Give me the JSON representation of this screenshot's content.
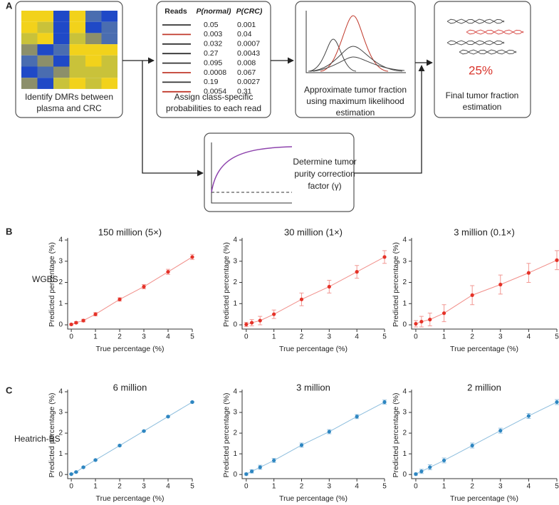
{
  "panel_labels": [
    "A",
    "B",
    "C"
  ],
  "row_labels": [
    "WGBS",
    "Heatrich-BS"
  ],
  "diagram": {
    "dmr": {
      "label": [
        "Identify DMRs between",
        "plasma and CRC"
      ]
    },
    "probabilities": {
      "header": [
        "Reads",
        "P(normal)",
        "P(CRC)"
      ],
      "rows": [
        {
          "color": "#333333",
          "p_normal": "0.05",
          "p_crc": "0.001"
        },
        {
          "color": "#c0392b",
          "p_normal": "0.003",
          "p_crc": "0.04"
        },
        {
          "color": "#333333",
          "p_normal": "0.032",
          "p_crc": "0.0007"
        },
        {
          "color": "#333333",
          "p_normal": "0.27",
          "p_crc": "0.0043"
        },
        {
          "color": "#333333",
          "p_normal": "0.095",
          "p_crc": "0.008"
        },
        {
          "color": "#c0392b",
          "p_normal": "0.0008",
          "p_crc": "0.067"
        },
        {
          "color": "#333333",
          "p_normal": "0.19",
          "p_crc": "0.0027"
        },
        {
          "color": "#c0392b",
          "p_normal": "0.0054",
          "p_crc": "0.31"
        }
      ],
      "label": [
        "Assign class-specific",
        "probabilities to each read"
      ]
    },
    "mle": {
      "label": [
        "Approximate tumor fraction",
        "using maximum likelihood",
        "estimation"
      ]
    },
    "final": {
      "value": "25%",
      "label": [
        "Final tumor fraction",
        "estimation"
      ]
    },
    "correction": {
      "label": [
        "Determine tumor",
        "purity correction",
        "factor (γ)"
      ]
    }
  },
  "chart_data": [
    {
      "type": "line",
      "title": "150 million (5×)",
      "x_label": "True percentage (%)",
      "y_label": "Predicted percentage (%)",
      "color": "#e53228",
      "x": [
        0,
        0.2,
        0.5,
        1,
        2,
        3,
        4,
        5
      ],
      "values": [
        0.02,
        0.1,
        0.2,
        0.5,
        1.2,
        1.8,
        2.5,
        3.2
      ],
      "errors": [
        0.03,
        0.05,
        0.06,
        0.08,
        0.08,
        0.1,
        0.12,
        0.12
      ],
      "xlim": [
        -0.15,
        5
      ],
      "ylim": [
        -0.2,
        4
      ],
      "xticks": [
        0,
        1,
        2,
        3,
        4,
        5
      ],
      "yticks": [
        0,
        1,
        2,
        3,
        4
      ]
    },
    {
      "type": "line",
      "title": "30 million (1×)",
      "x_label": "True percentage (%)",
      "y_label": "Predicted percentage (%)",
      "color": "#e53228",
      "x": [
        0,
        0.2,
        0.5,
        1,
        2,
        3,
        4,
        5
      ],
      "values": [
        0.02,
        0.1,
        0.2,
        0.5,
        1.2,
        1.8,
        2.5,
        3.2
      ],
      "errors": [
        0.1,
        0.15,
        0.2,
        0.2,
        0.3,
        0.3,
        0.3,
        0.3
      ],
      "xlim": [
        -0.15,
        5
      ],
      "ylim": [
        -0.2,
        4
      ],
      "xticks": [
        0,
        1,
        2,
        3,
        4,
        5
      ],
      "yticks": [
        0,
        1,
        2,
        3,
        4
      ]
    },
    {
      "type": "line",
      "title": "3 million (0.1×)",
      "x_label": "True percentage (%)",
      "y_label": "Predicted percentage (%)",
      "color": "#e53228",
      "x": [
        0,
        0.2,
        0.5,
        1,
        2,
        3,
        4,
        5
      ],
      "values": [
        0.05,
        0.15,
        0.25,
        0.55,
        1.4,
        1.9,
        2.45,
        3.05
      ],
      "errors": [
        0.15,
        0.25,
        0.3,
        0.4,
        0.45,
        0.45,
        0.45,
        0.45
      ],
      "xlim": [
        -0.15,
        5
      ],
      "ylim": [
        -0.2,
        4
      ],
      "xticks": [
        0,
        1,
        2,
        3,
        4,
        5
      ],
      "yticks": [
        0,
        1,
        2,
        3,
        4
      ]
    },
    {
      "type": "line",
      "title": "6 million",
      "x_label": "True percentage (%)",
      "y_label": "Predicted percentage (%)",
      "color": "#2e86c1",
      "x": [
        0,
        0.2,
        0.5,
        1,
        2,
        3,
        4,
        5
      ],
      "values": [
        0.02,
        0.12,
        0.35,
        0.7,
        1.4,
        2.1,
        2.8,
        3.5
      ],
      "errors": [
        0.03,
        0.03,
        0.03,
        0.03,
        0.03,
        0.03,
        0.03,
        0.03
      ],
      "xlim": [
        -0.15,
        5
      ],
      "ylim": [
        -0.2,
        4
      ],
      "xticks": [
        0,
        1,
        2,
        3,
        4,
        5
      ],
      "yticks": [
        0,
        1,
        2,
        3,
        4
      ]
    },
    {
      "type": "line",
      "title": "3 million",
      "x_label": "True percentage (%)",
      "y_label": "Predicted percentage (%)",
      "color": "#2e86c1",
      "x": [
        0,
        0.2,
        0.5,
        1,
        2,
        3,
        4,
        5
      ],
      "values": [
        0.02,
        0.15,
        0.35,
        0.68,
        1.42,
        2.07,
        2.8,
        3.5
      ],
      "errors": [
        0.05,
        0.08,
        0.1,
        0.1,
        0.1,
        0.1,
        0.1,
        0.1
      ],
      "xlim": [
        -0.15,
        5
      ],
      "ylim": [
        -0.2,
        4
      ],
      "xticks": [
        0,
        1,
        2,
        3,
        4,
        5
      ],
      "yticks": [
        0,
        1,
        2,
        3,
        4
      ]
    },
    {
      "type": "line",
      "title": "2 million",
      "x_label": "True percentage (%)",
      "y_label": "Predicted percentage (%)",
      "color": "#2e86c1",
      "x": [
        0,
        0.2,
        0.5,
        1,
        2,
        3,
        4,
        5
      ],
      "values": [
        0.02,
        0.15,
        0.35,
        0.68,
        1.4,
        2.12,
        2.83,
        3.5
      ],
      "errors": [
        0.05,
        0.1,
        0.12,
        0.12,
        0.12,
        0.12,
        0.12,
        0.12
      ],
      "xlim": [
        -0.15,
        5
      ],
      "ylim": [
        -0.2,
        4
      ],
      "xticks": [
        0,
        1,
        2,
        3,
        4,
        5
      ],
      "yticks": [
        0,
        1,
        2,
        3,
        4
      ]
    }
  ]
}
